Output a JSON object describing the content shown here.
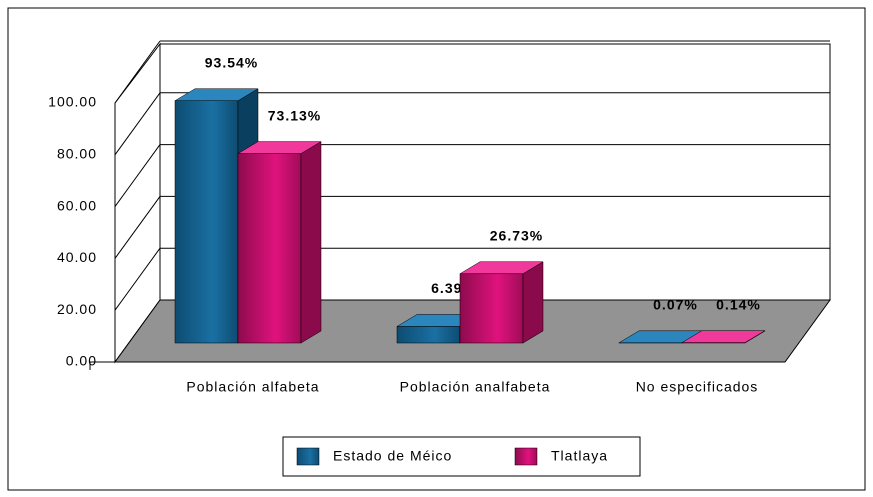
{
  "chart_data": {
    "type": "bar3d",
    "categories": [
      "Población alfabeta",
      "Población analfabeta",
      "No especificados"
    ],
    "series": [
      {
        "name": "Estado de Méico",
        "color": "#1a70a3",
        "values": [
          93.54,
          6.39,
          0.07
        ],
        "value_labels": [
          "93.54%",
          "6.39%",
          "0.07%"
        ]
      },
      {
        "name": "Tlatlaya",
        "color": "#e0127d",
        "values": [
          73.13,
          26.73,
          0.14
        ],
        "value_labels": [
          "73.13%",
          "26.73%",
          "0.14%"
        ]
      }
    ],
    "ylim": [
      0,
      100
    ],
    "yticks": [
      {
        "value": 0,
        "label": "0.00"
      },
      {
        "value": 20,
        "label": "20.00"
      },
      {
        "value": 40,
        "label": "40.00"
      },
      {
        "value": 60,
        "label": "60.00"
      },
      {
        "value": 80,
        "label": "80.00"
      },
      {
        "value": 100,
        "label": "100.00"
      }
    ],
    "grid": true,
    "legend": "bottom"
  }
}
